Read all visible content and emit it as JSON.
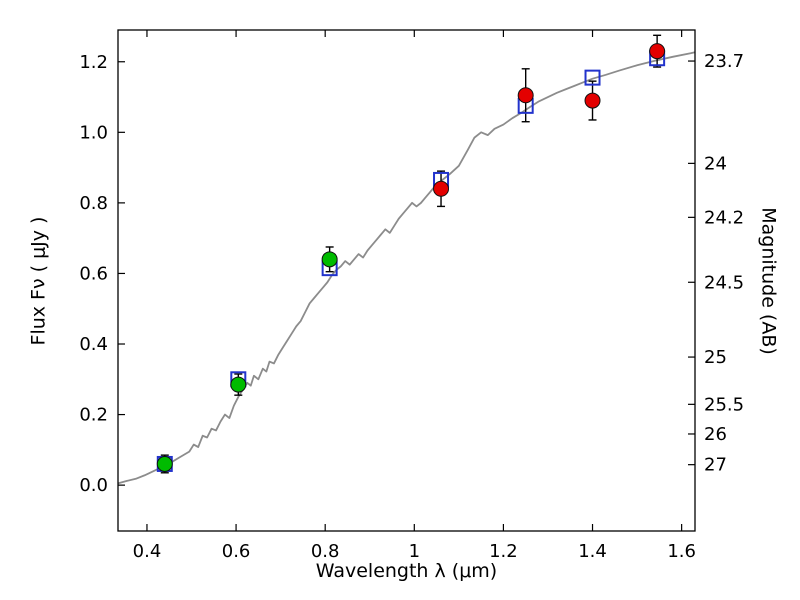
{
  "chart_data": {
    "type": "line+scatter",
    "title": "",
    "xlabel": "Wavelength  λ  (μm)",
    "ylabel": "Flux  Fν  ( μJy )",
    "y2label": "Magnitude (AB)",
    "xlim": [
      0.335,
      1.63
    ],
    "ylim": [
      -0.13,
      1.29
    ],
    "grid": false,
    "legend": "none",
    "x_ticks": [
      0.4,
      0.6,
      0.8,
      1,
      1.2,
      1.4,
      1.6
    ],
    "x_tick_labels": [
      "0.4",
      "0.6",
      "0.8",
      "1",
      "1.2",
      "1.4",
      "1.6"
    ],
    "y_ticks": [
      0.0,
      0.2,
      0.4,
      0.6,
      0.8,
      1.0,
      1.2
    ],
    "y_tick_labels": [
      "0.0",
      "0.2",
      "0.4",
      "0.6",
      "0.8",
      "1.0",
      "1.2"
    ],
    "right_axis_ticks": [
      {
        "label": "23.7",
        "flux": 1.202
      },
      {
        "label": "24",
        "flux": 0.912
      },
      {
        "label": "24.2",
        "flux": 0.759
      },
      {
        "label": "24.5",
        "flux": 0.575
      },
      {
        "label": "25",
        "flux": 0.363
      },
      {
        "label": "25.5",
        "flux": 0.229
      },
      {
        "label": "26",
        "flux": 0.145
      },
      {
        "label": "27",
        "flux": 0.058
      }
    ],
    "colors": {
      "spectrum": "#8c8c8c",
      "observed_optical": "#00bb00",
      "observed_nir": "#e30000",
      "model_photometry": "#2233cc",
      "error_bar": "#000000",
      "marker_edge": "#111111"
    },
    "model_spectrum": {
      "name": "model-spectrum",
      "points": [
        [
          0.335,
          0.005
        ],
        [
          0.355,
          0.012
        ],
        [
          0.375,
          0.018
        ],
        [
          0.395,
          0.028
        ],
        [
          0.415,
          0.04
        ],
        [
          0.435,
          0.052
        ],
        [
          0.455,
          0.065
        ],
        [
          0.475,
          0.08
        ],
        [
          0.495,
          0.095
        ],
        [
          0.505,
          0.115
        ],
        [
          0.515,
          0.108
        ],
        [
          0.525,
          0.14
        ],
        [
          0.535,
          0.135
        ],
        [
          0.545,
          0.16
        ],
        [
          0.555,
          0.155
        ],
        [
          0.565,
          0.18
        ],
        [
          0.575,
          0.2
        ],
        [
          0.585,
          0.19
        ],
        [
          0.595,
          0.225
        ],
        [
          0.605,
          0.25
        ],
        [
          0.615,
          0.27
        ],
        [
          0.625,
          0.29
        ],
        [
          0.633,
          0.282
        ],
        [
          0.64,
          0.31
        ],
        [
          0.65,
          0.3
        ],
        [
          0.66,
          0.33
        ],
        [
          0.668,
          0.322
        ],
        [
          0.675,
          0.35
        ],
        [
          0.685,
          0.345
        ],
        [
          0.695,
          0.37
        ],
        [
          0.705,
          0.39
        ],
        [
          0.715,
          0.41
        ],
        [
          0.725,
          0.43
        ],
        [
          0.735,
          0.45
        ],
        [
          0.745,
          0.465
        ],
        [
          0.755,
          0.49
        ],
        [
          0.765,
          0.515
        ],
        [
          0.775,
          0.53
        ],
        [
          0.785,
          0.545
        ],
        [
          0.795,
          0.56
        ],
        [
          0.805,
          0.575
        ],
        [
          0.815,
          0.595
        ],
        [
          0.825,
          0.61
        ],
        [
          0.835,
          0.62
        ],
        [
          0.845,
          0.635
        ],
        [
          0.855,
          0.625
        ],
        [
          0.865,
          0.64
        ],
        [
          0.875,
          0.655
        ],
        [
          0.885,
          0.645
        ],
        [
          0.895,
          0.665
        ],
        [
          0.905,
          0.68
        ],
        [
          0.915,
          0.695
        ],
        [
          0.925,
          0.71
        ],
        [
          0.935,
          0.725
        ],
        [
          0.945,
          0.715
        ],
        [
          0.955,
          0.735
        ],
        [
          0.965,
          0.755
        ],
        [
          0.975,
          0.77
        ],
        [
          0.985,
          0.785
        ],
        [
          0.995,
          0.8
        ],
        [
          1.005,
          0.79
        ],
        [
          1.015,
          0.8
        ],
        [
          1.025,
          0.815
        ],
        [
          1.035,
          0.83
        ],
        [
          1.045,
          0.845
        ],
        [
          1.06,
          0.862
        ],
        [
          1.08,
          0.882
        ],
        [
          1.1,
          0.905
        ],
        [
          1.12,
          0.95
        ],
        [
          1.135,
          0.985
        ],
        [
          1.15,
          1.0
        ],
        [
          1.165,
          0.992
        ],
        [
          1.18,
          1.01
        ],
        [
          1.2,
          1.022
        ],
        [
          1.22,
          1.04
        ],
        [
          1.24,
          1.055
        ],
        [
          1.26,
          1.072
        ],
        [
          1.28,
          1.088
        ],
        [
          1.3,
          1.1
        ],
        [
          1.32,
          1.112
        ],
        [
          1.34,
          1.122
        ],
        [
          1.36,
          1.132
        ],
        [
          1.38,
          1.142
        ],
        [
          1.4,
          1.152
        ],
        [
          1.43,
          1.163
        ],
        [
          1.46,
          1.175
        ],
        [
          1.5,
          1.19
        ],
        [
          1.54,
          1.203
        ],
        [
          1.58,
          1.214
        ],
        [
          1.62,
          1.224
        ],
        [
          1.63,
          1.227
        ]
      ]
    },
    "model_photometry": {
      "name": "model-photometry",
      "marker": "open-square",
      "points": [
        [
          0.44,
          0.06
        ],
        [
          0.605,
          0.3
        ],
        [
          0.81,
          0.615
        ],
        [
          1.06,
          0.865
        ],
        [
          1.25,
          1.075
        ],
        [
          1.4,
          1.155
        ],
        [
          1.545,
          1.21
        ]
      ]
    },
    "observed": [
      {
        "group": "optical",
        "x": 0.44,
        "y": 0.06,
        "yerr": 0.025
      },
      {
        "group": "optical",
        "x": 0.605,
        "y": 0.285,
        "yerr": 0.03
      },
      {
        "group": "optical",
        "x": 0.81,
        "y": 0.64,
        "yerr": 0.035
      },
      {
        "group": "nir",
        "x": 1.06,
        "y": 0.84,
        "yerr": 0.05
      },
      {
        "group": "nir",
        "x": 1.25,
        "y": 1.105,
        "yerr": 0.075
      },
      {
        "group": "nir",
        "x": 1.4,
        "y": 1.09,
        "yerr": 0.055
      },
      {
        "group": "nir",
        "x": 1.545,
        "y": 1.23,
        "yerr": 0.045
      }
    ]
  }
}
